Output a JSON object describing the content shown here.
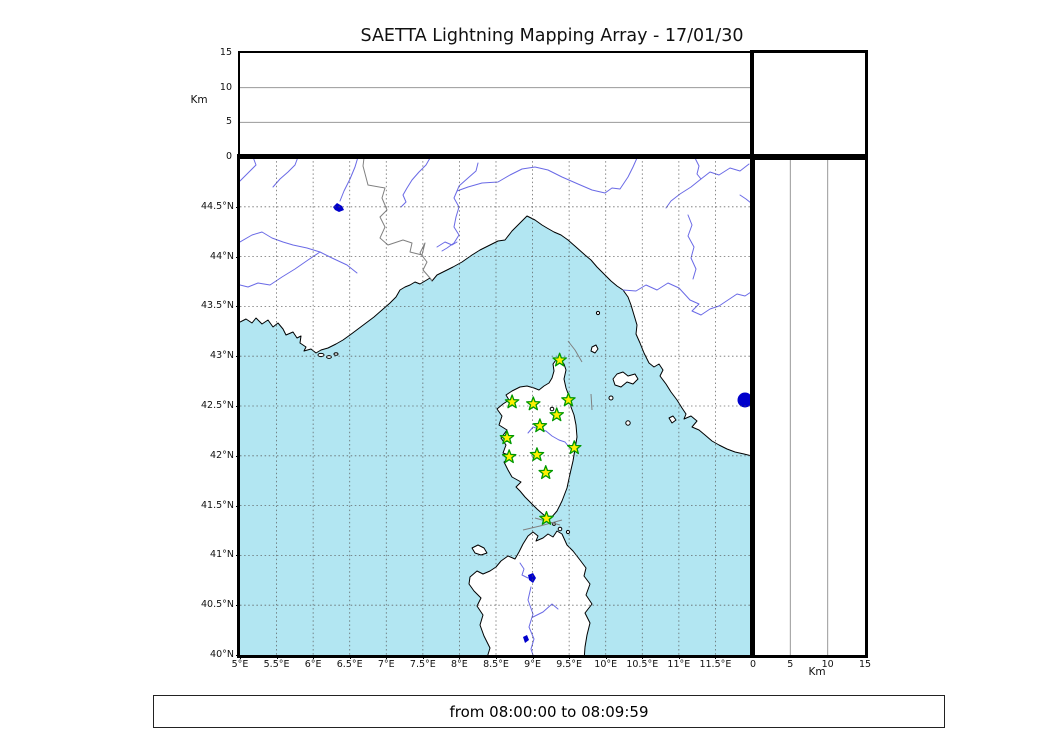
{
  "title": "SAETTA Lightning Mapping Array - 17/01/30",
  "time_range": {
    "label": "from 08:00:00 to 08:09:59"
  },
  "map_panel": {
    "lon_min": 5,
    "lon_max": 12,
    "lat_min": 40,
    "lat_max": 45,
    "grid_step_deg": 0.5,
    "lon_tick_labels": [
      "5°E",
      "5.5°E",
      "6°E",
      "6.5°E",
      "7°E",
      "7.5°E",
      "8°E",
      "8.5°E",
      "9°E",
      "9.5°E",
      "10°E",
      "10.5°E",
      "11°E",
      "11.5°E"
    ],
    "lon_tick_values": [
      5,
      5.5,
      6,
      6.5,
      7,
      7.5,
      8,
      8.5,
      9,
      9.5,
      10,
      10.5,
      11,
      11.5
    ],
    "lat_tick_labels": [
      "44.5°N",
      "44°N",
      "43.5°N",
      "43°N",
      "42.5°N",
      "42°N",
      "41.5°N",
      "41°N",
      "40.5°N",
      "40°N"
    ],
    "lat_tick_values": [
      44.5,
      44,
      43.5,
      43,
      42.5,
      42,
      41.5,
      41,
      40.5,
      40
    ],
    "stations": [
      {
        "lon": 9.37,
        "lat": 42.96
      },
      {
        "lon": 8.72,
        "lat": 42.54
      },
      {
        "lon": 9.01,
        "lat": 42.52
      },
      {
        "lon": 9.49,
        "lat": 42.56
      },
      {
        "lon": 9.33,
        "lat": 42.41
      },
      {
        "lon": 9.1,
        "lat": 42.3
      },
      {
        "lon": 8.65,
        "lat": 42.18
      },
      {
        "lon": 9.57,
        "lat": 42.08
      },
      {
        "lon": 8.68,
        "lat": 41.99
      },
      {
        "lon": 9.06,
        "lat": 42.01
      },
      {
        "lon": 9.18,
        "lat": 41.83
      },
      {
        "lon": 9.19,
        "lat": 41.37
      }
    ],
    "colors": {
      "sea": "#B2E6F2",
      "land": "#FFFFFF",
      "river": "#6A6AE6",
      "lake": "#0000CC",
      "coast": "#000000",
      "country_border": "#808080",
      "grid": "#555555",
      "station_fill": "#FFF000",
      "station_edge": "#009900"
    }
  },
  "altitude_axis": {
    "unit": "Km",
    "tick_labels": [
      "0",
      "5",
      "10",
      "15"
    ],
    "tick_values": [
      0,
      5,
      10,
      15
    ],
    "max_km": 15,
    "gridline_km": [
      5,
      10
    ]
  }
}
